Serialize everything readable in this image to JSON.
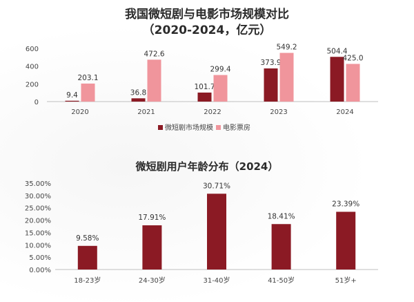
{
  "chart_data": [
    {
      "type": "bar",
      "title": "我国微短剧与电影市场规模对比",
      "subtitle": "（2020-2024，亿元）",
      "categories": [
        "2020",
        "2021",
        "2022",
        "2023",
        "2024"
      ],
      "yticks": [
        "0",
        "200",
        "400",
        "600"
      ],
      "ylim": [
        0,
        600
      ],
      "grid": false,
      "legend_position": "bottom",
      "series": [
        {
          "name": "微短剧市场规模",
          "color": "#8b1a24",
          "values": [
            9.4,
            36.8,
            101.7,
            373.9,
            504.4
          ],
          "labels": [
            "9.4",
            "36.8",
            "101.7",
            "373.9",
            "504.4"
          ]
        },
        {
          "name": "电影票房",
          "color": "#f0959c",
          "values": [
            203.1,
            472.6,
            299.4,
            549.2,
            425.0
          ],
          "labels": [
            "203.1",
            "472.6",
            "299.4",
            "549.2",
            "425.0"
          ]
        }
      ]
    },
    {
      "type": "bar",
      "title": "微短剧用户年龄分布（2024）",
      "categories": [
        "18-23岁",
        "24-30岁",
        "31-40岁",
        "41-50岁",
        "51岁+"
      ],
      "yticks": [
        "0.00%",
        "5.00%",
        "10.00%",
        "15.00%",
        "20.00%",
        "25.00%",
        "30.00%",
        "35.00%"
      ],
      "ylim": [
        0,
        35
      ],
      "grid": false,
      "series": [
        {
          "color": "#8b1a24",
          "values": [
            9.58,
            17.91,
            30.71,
            18.41,
            23.39
          ],
          "labels": [
            "9.58%",
            "17.91%",
            "30.71%",
            "18.41%",
            "23.39%"
          ]
        }
      ]
    }
  ]
}
